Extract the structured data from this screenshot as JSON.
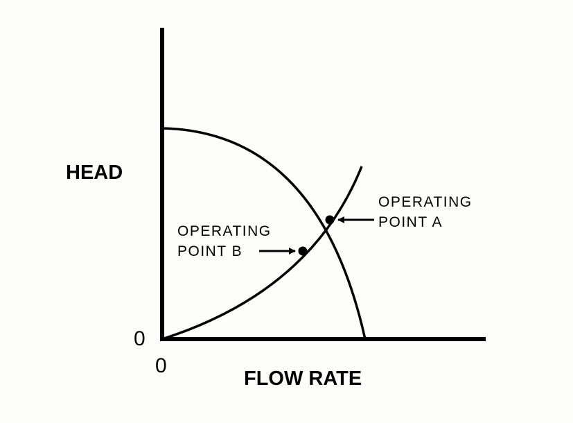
{
  "diagram": {
    "y_axis_label": "HEAD",
    "x_axis_label": "FLOW RATE",
    "y_origin_label": "0",
    "x_origin_label": "0",
    "curves": [
      {
        "id": "pump-curve",
        "shape": "descending"
      },
      {
        "id": "system-curve",
        "shape": "ascending"
      }
    ],
    "operating_points": [
      {
        "id": "a",
        "label_line1": "OPERATING",
        "label_line2": "POINT A"
      },
      {
        "id": "b",
        "label_line1": "OPERATING",
        "label_line2": "POINT B"
      }
    ],
    "colors": {
      "ink": "#000000",
      "background": "#fdfdfb"
    }
  }
}
